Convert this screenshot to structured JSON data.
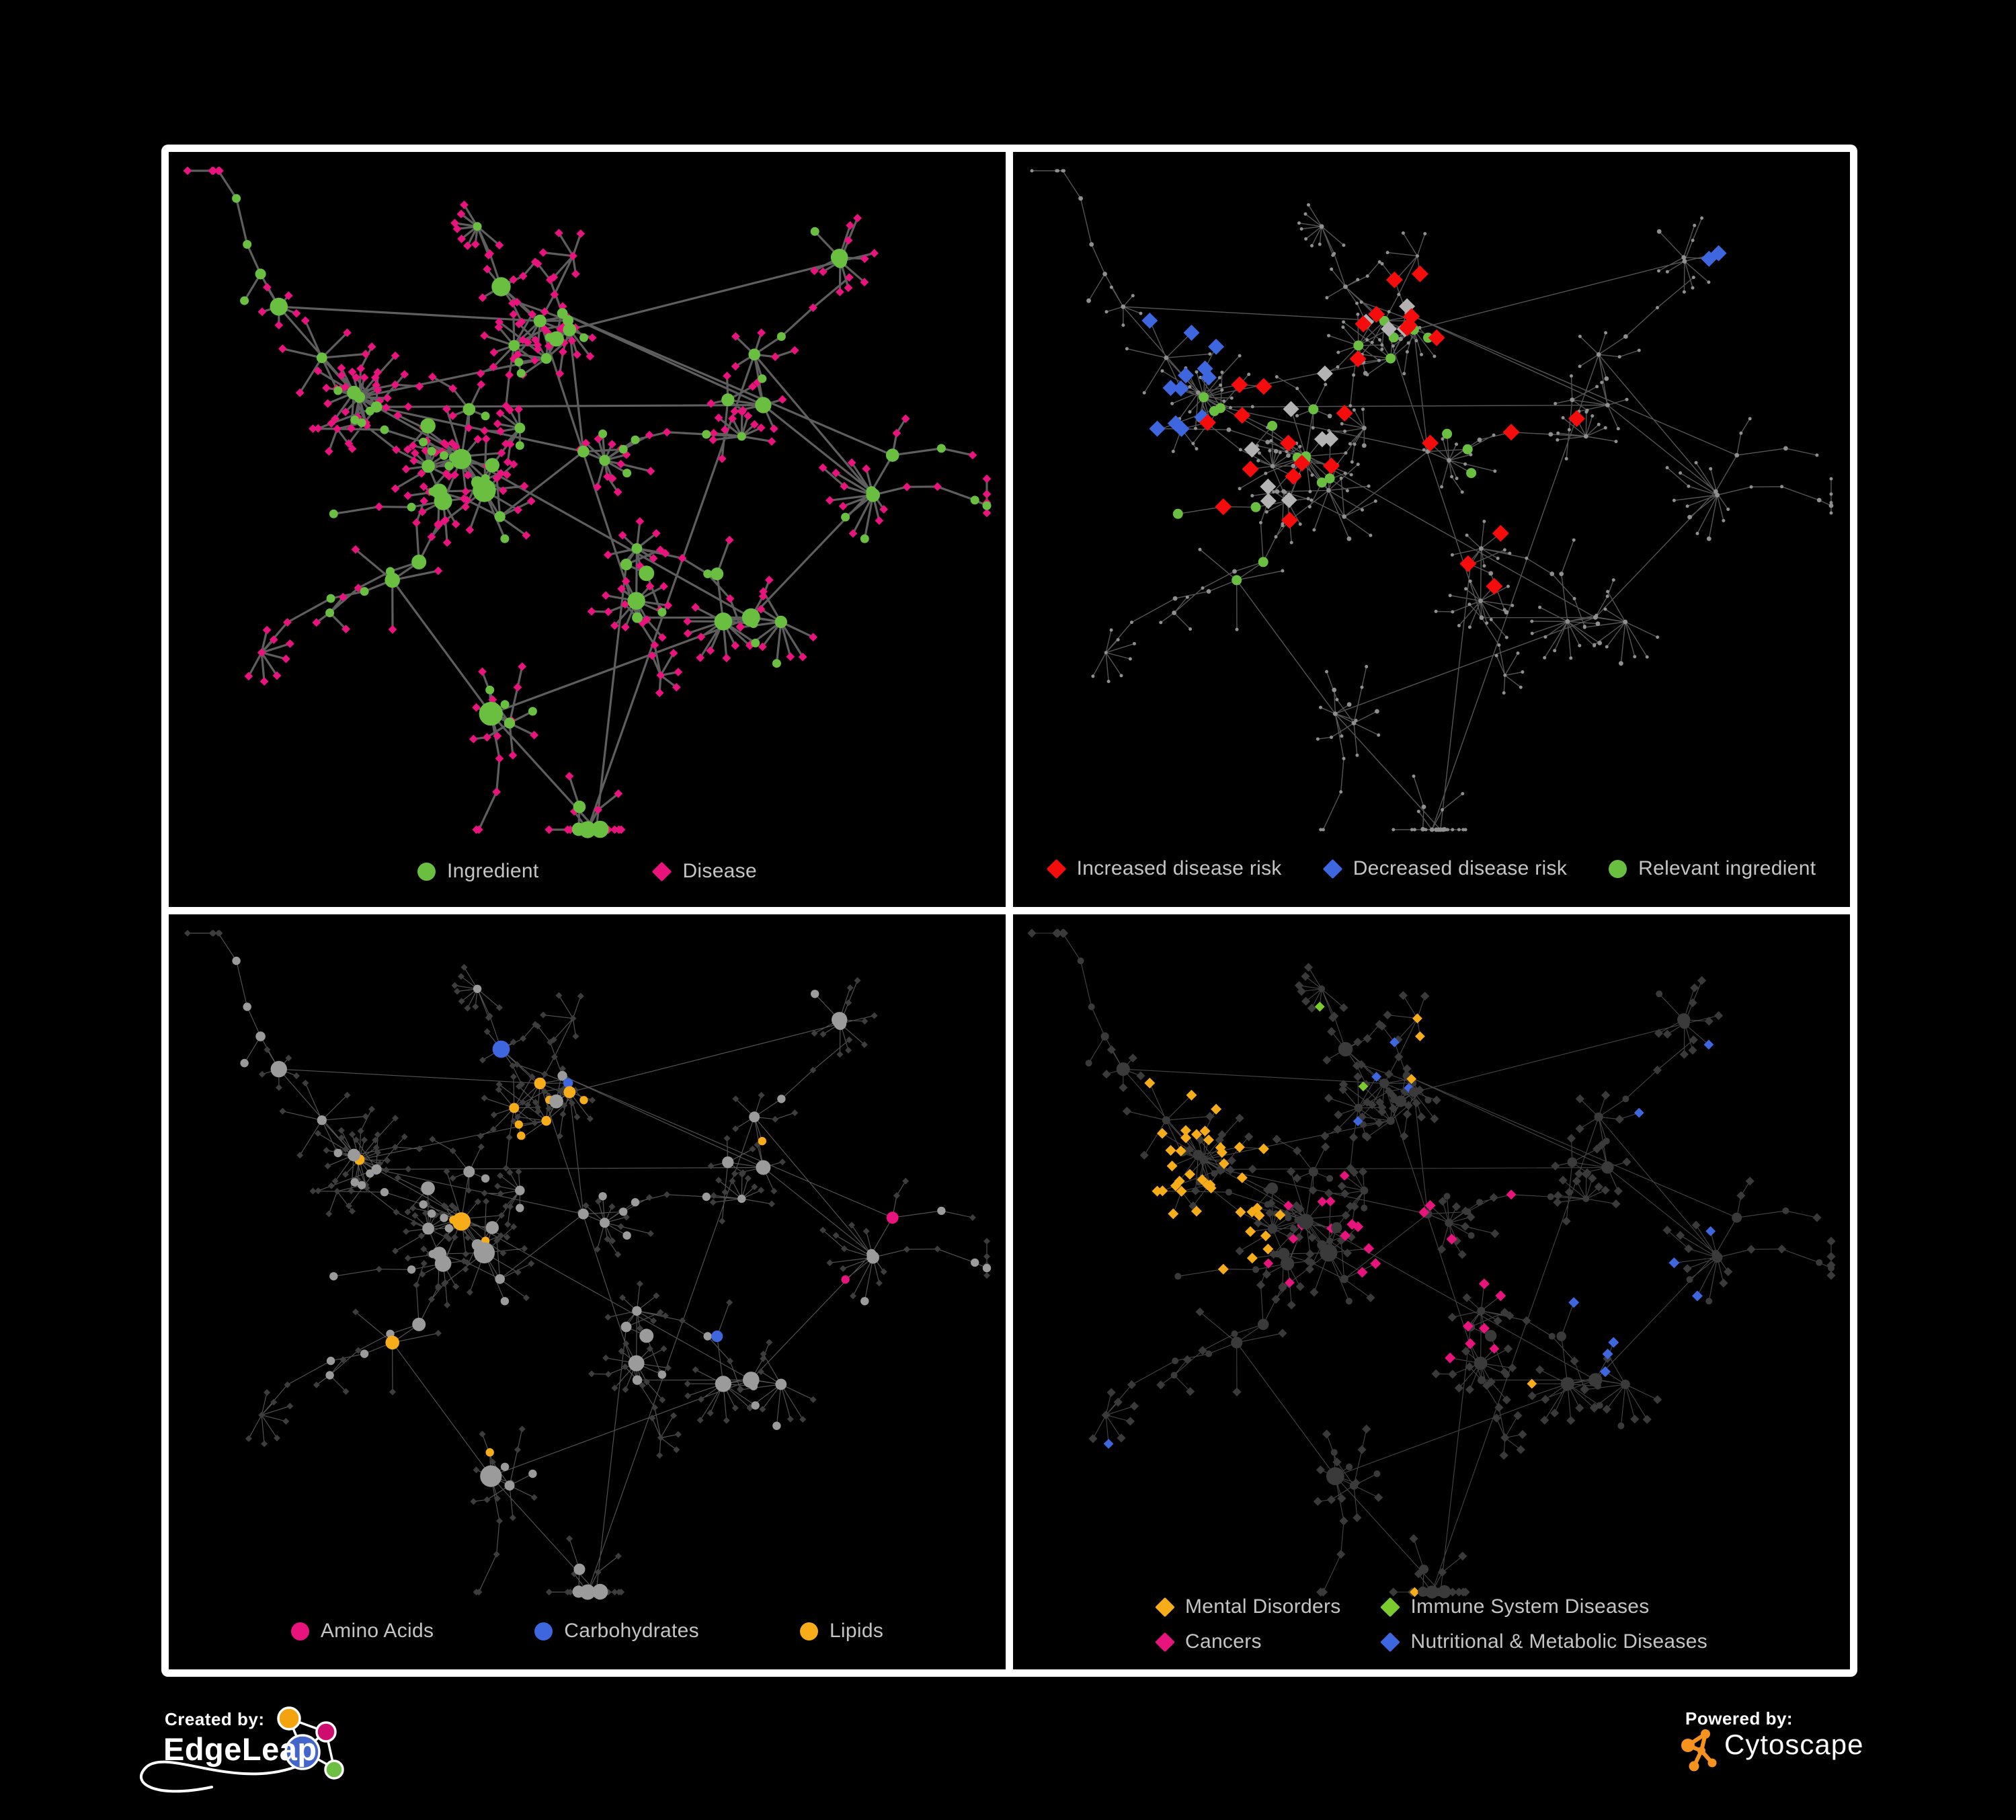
{
  "canvas": {
    "background": "#000000",
    "frame_color": "#ffffff"
  },
  "legend_text_color": "#c4c4c4",
  "panels": [
    {
      "id": "ingredient-disease-network",
      "legend": [
        {
          "label": "Ingredient",
          "shape": "circle",
          "color": "#6abf40"
        },
        {
          "label": "Disease",
          "shape": "diamond",
          "color": "#e8137d"
        }
      ],
      "style": {
        "edge_color": "#6f6f6f",
        "edge_width": 3.2,
        "edge_opacity": 0.85,
        "ingredient": "#6abf40",
        "disease": "#e8137d"
      }
    },
    {
      "id": "disease-risk-network",
      "legend": [
        {
          "label": "Increased disease risk",
          "shape": "diamond",
          "color": "#f50c0c"
        },
        {
          "label": "Decreased disease risk",
          "shape": "diamond",
          "color": "#3e66df"
        },
        {
          "label": "Relevant ingredient",
          "shape": "circle",
          "color": "#6abf40"
        }
      ],
      "style": {
        "edge_color": "#5e5e5e",
        "edge_width": 1.4,
        "edge_opacity": 0.9,
        "base": "#8f8f8f",
        "increased": "#f50c0c",
        "decreased": "#3e66df",
        "relevant": "#6abf40",
        "unchanged": "#b3b3b3"
      }
    },
    {
      "id": "nutrient-class-network",
      "legend": [
        {
          "label": "Amino Acids",
          "shape": "circle",
          "color": "#e8137d"
        },
        {
          "label": "Carbohydrates",
          "shape": "circle",
          "color": "#3e66df"
        },
        {
          "label": "Lipids",
          "shape": "circle",
          "color": "#f7ad19"
        }
      ],
      "style": {
        "edge_color": "#a8a8a8",
        "edge_width": 1.15,
        "edge_opacity": 0.5,
        "base": "#9b9b9b",
        "disease": "#3d3d3d",
        "amino": "#e8137d",
        "carbs": "#3e66df",
        "lipids": "#f7ad19"
      }
    },
    {
      "id": "disease-class-network",
      "legend": [
        {
          "label": "Mental Disorders",
          "shape": "diamond",
          "color": "#f7ad19"
        },
        {
          "label": "Immune System Diseases",
          "shape": "diamond",
          "color": "#7ccb2e"
        },
        {
          "label": "Cancers",
          "shape": "diamond",
          "color": "#e8137d"
        },
        {
          "label": "Nutritional & Metabolic Diseases",
          "shape": "diamond",
          "color": "#3e66df"
        }
      ],
      "style": {
        "edge_color": "#8a8a8a",
        "edge_width": 1.1,
        "edge_opacity": 0.5,
        "base": "#3a3a3a",
        "mental": "#f7ad19",
        "immune": "#7ccb2e",
        "cancers": "#e8137d",
        "nutritional": "#3e66df"
      }
    }
  ],
  "footer": {
    "created_by": {
      "label": "Created by:",
      "brand": "EdgeLeap",
      "logo": {
        "orange": "#f2a30e",
        "pink": "#ce0d6e",
        "blue": "#4466cc",
        "green": "#6fbe44"
      }
    },
    "powered_by": {
      "label": "Powered by:",
      "brand": "Cytoscape",
      "icon_color": "#f6921e"
    }
  },
  "network": {
    "seed": 11,
    "hub_count": 54,
    "extra_edges": 12,
    "chains": 16,
    "clusters": [
      [
        0.37,
        0.42,
        0.085
      ],
      [
        0.52,
        0.4,
        0.075
      ],
      [
        0.3,
        0.58,
        0.07
      ],
      [
        0.56,
        0.57,
        0.065
      ],
      [
        0.44,
        0.23,
        0.06
      ],
      [
        0.24,
        0.31,
        0.06
      ],
      [
        0.68,
        0.3,
        0.06
      ],
      [
        0.7,
        0.6,
        0.06
      ],
      [
        0.4,
        0.76,
        0.06
      ],
      [
        0.6,
        0.79,
        0.055
      ],
      [
        0.79,
        0.15,
        0.045
      ],
      [
        0.17,
        0.72,
        0.05
      ],
      [
        0.84,
        0.44,
        0.045
      ],
      [
        0.13,
        0.2,
        0.05
      ],
      [
        0.88,
        0.7,
        0.04
      ],
      [
        0.5,
        0.9,
        0.04
      ]
    ]
  }
}
